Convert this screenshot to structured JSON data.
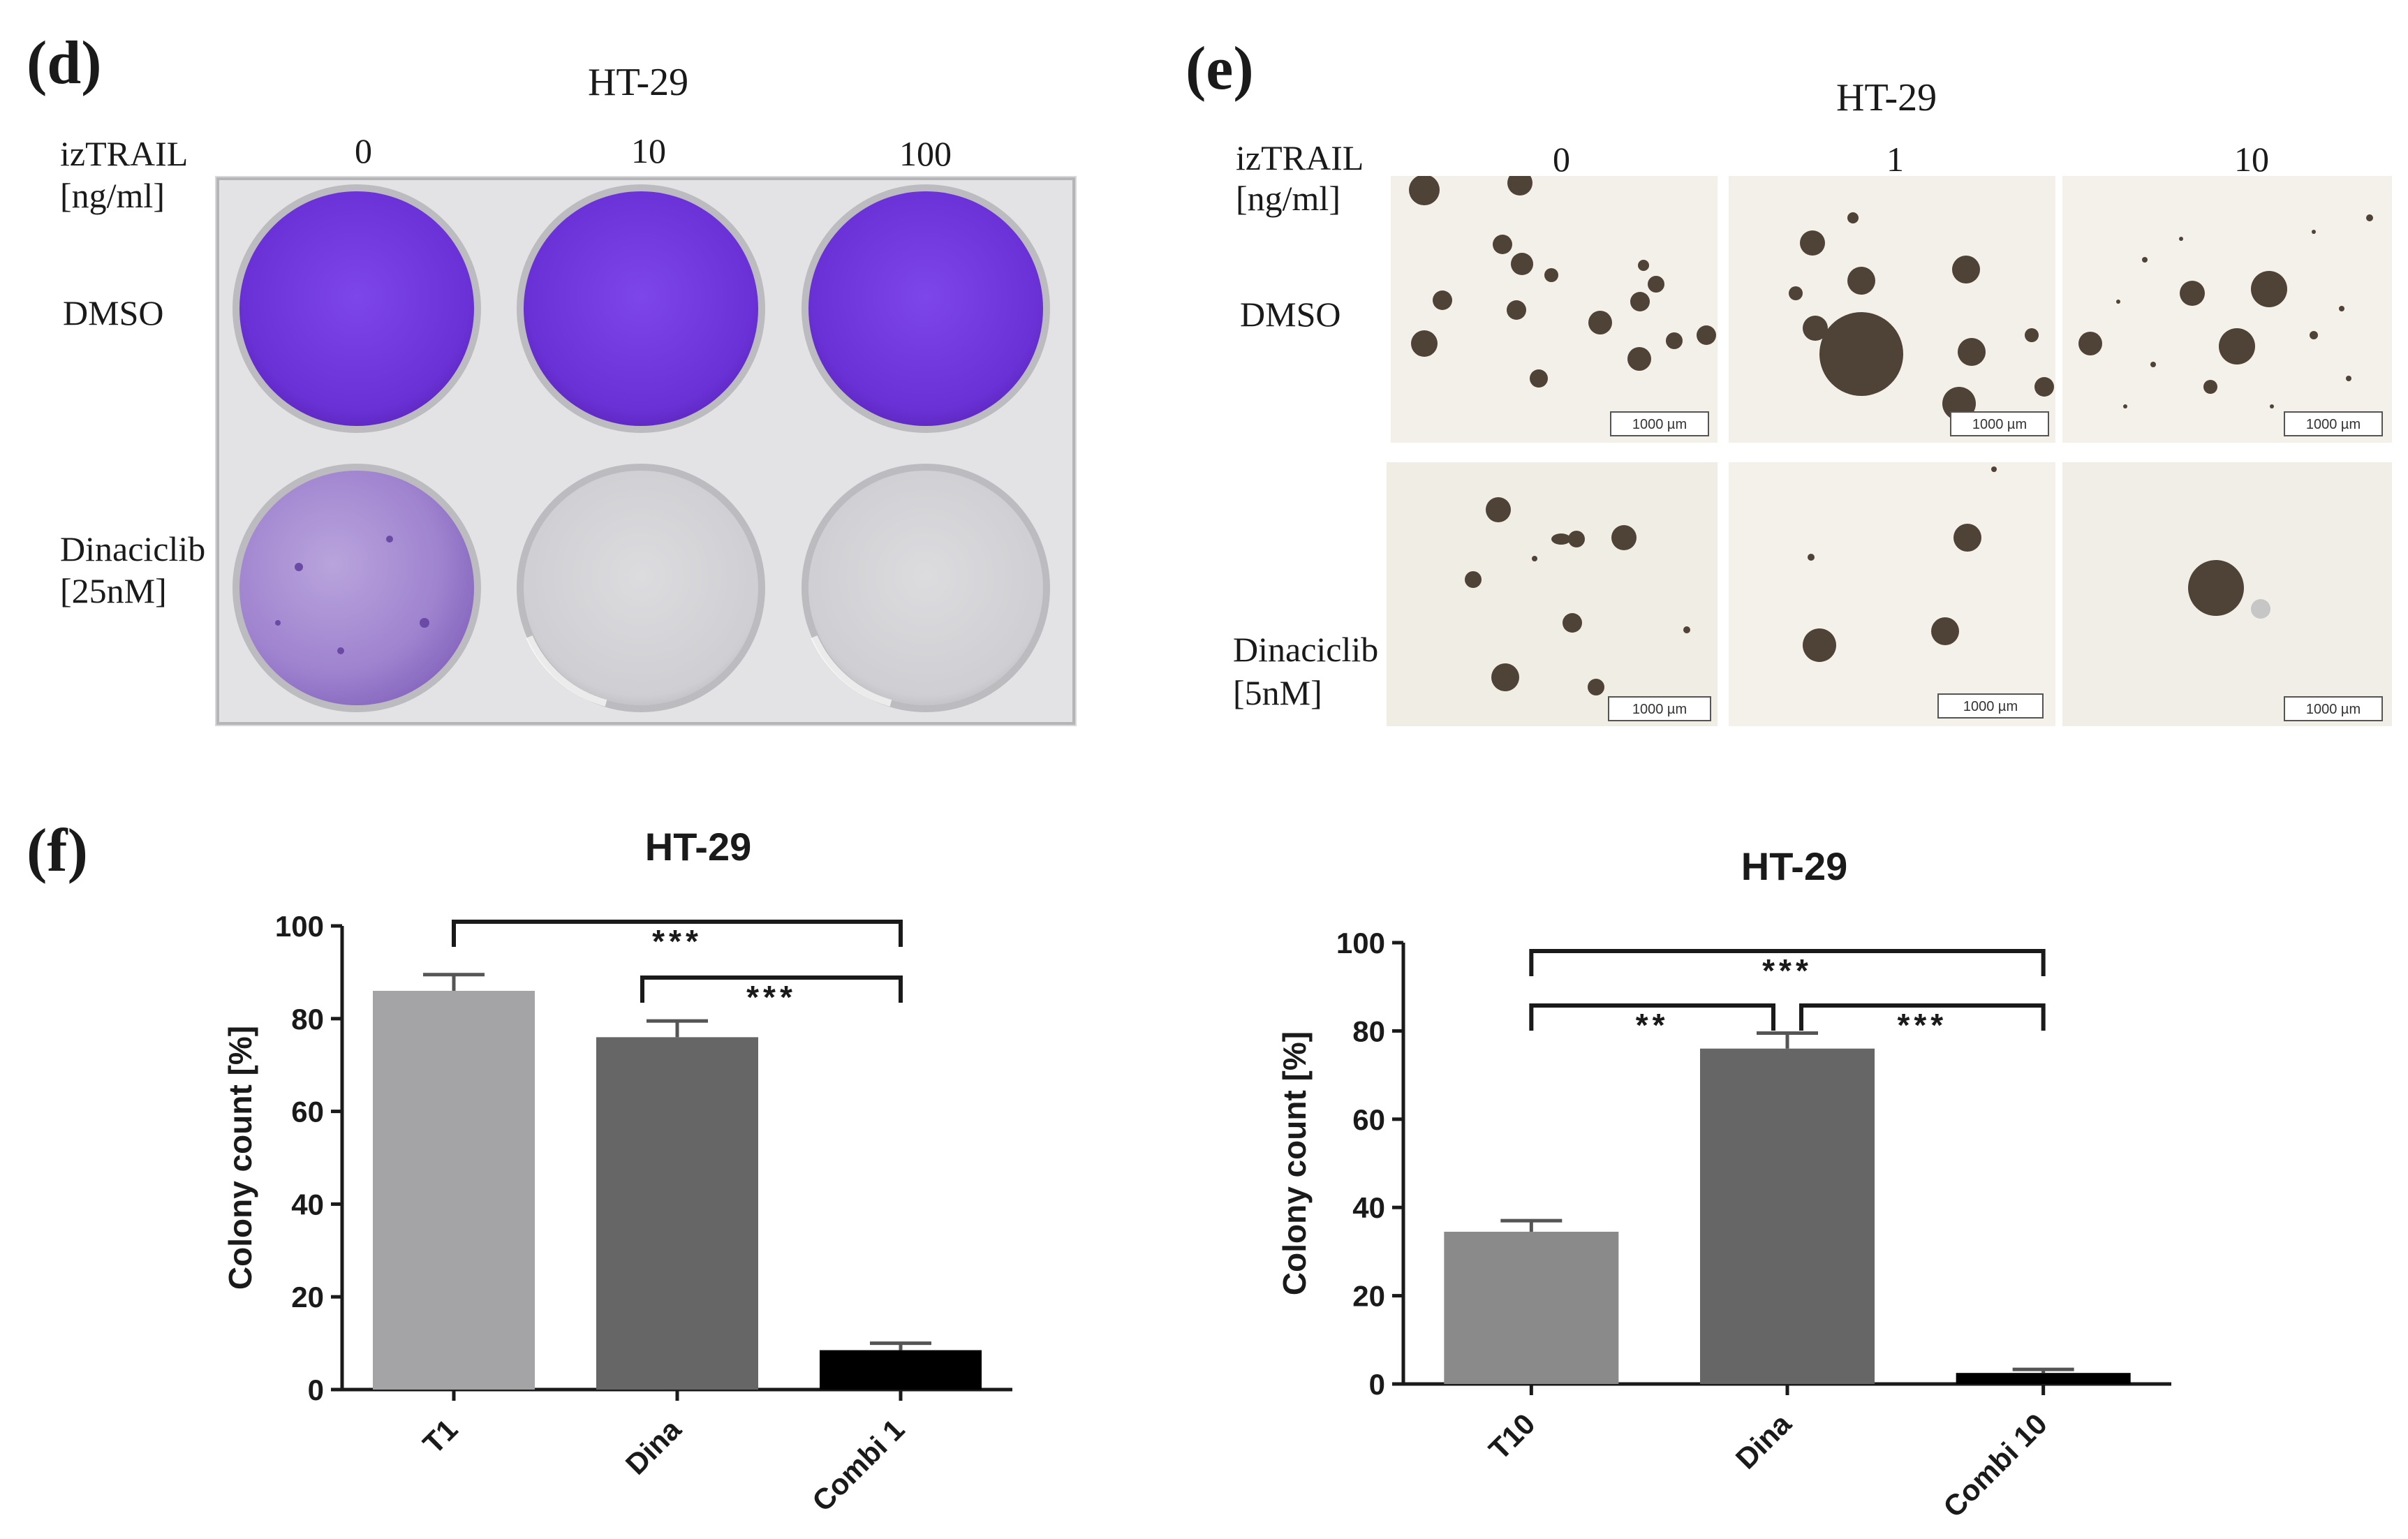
{
  "panel_d": {
    "letter": "(d)",
    "title": "HT-29",
    "dose_label_1": "izTRAIL",
    "dose_label_2": "[ng/ml]",
    "doses": [
      "0",
      "10",
      "100"
    ],
    "rows": [
      {
        "label_1": "DMSO",
        "label_2": ""
      },
      {
        "label_1": "Dinaciclib",
        "label_2": "[25nM]"
      }
    ],
    "colors": {
      "crystal_violet": "#7a3fe0",
      "plate": "#d9d9db"
    }
  },
  "panel_e": {
    "letter": "(e)",
    "title": "HT-29",
    "dose_label_1": "izTRAIL",
    "dose_label_2": "[ng/ml]",
    "doses": [
      "0",
      "1",
      "10"
    ],
    "rows": [
      {
        "label_1": "DMSO",
        "label_2": ""
      },
      {
        "label_1": "Dinaciclib",
        "label_2": "[5nM]"
      }
    ],
    "scale_bar": "1000 µm",
    "colors": {
      "background": "#f1efe6",
      "colony": "#4a3f34"
    }
  },
  "panel_f": {
    "letter": "(f)"
  },
  "chart_data": [
    {
      "type": "bar",
      "title": "HT-29",
      "ylabel": "Colony count [%]",
      "xlabel": "",
      "ylim": [
        0,
        100
      ],
      "yticks": [
        "0",
        "20",
        "40",
        "60",
        "80",
        "100"
      ],
      "categories": [
        "T1",
        "Dina",
        "Combi 1"
      ],
      "values": [
        86,
        76,
        8.5
      ],
      "errors": [
        3.5,
        3.5,
        1.5
      ],
      "colors": [
        "#a4a4a6",
        "#666666",
        "#000000"
      ],
      "significance": [
        {
          "from": 0,
          "to": 2,
          "label": "***"
        },
        {
          "from": 1,
          "to": 2,
          "label": "***"
        }
      ],
      "grid": false
    },
    {
      "type": "bar",
      "title": "HT-29",
      "ylabel": "Colony count [%]",
      "xlabel": "",
      "ylim": [
        0,
        100
      ],
      "yticks": [
        "0",
        "20",
        "40",
        "60",
        "80",
        "100"
      ],
      "categories": [
        "T10",
        "Dina",
        "Combi 10"
      ],
      "values": [
        34.5,
        76,
        2.5
      ],
      "errors": [
        2.5,
        3.5,
        0.8
      ],
      "colors": [
        "#8a8a8a",
        "#666666",
        "#000000"
      ],
      "significance": [
        {
          "from": 0,
          "to": 2,
          "label": "***"
        },
        {
          "from": 0,
          "to": 1,
          "label": "**"
        },
        {
          "from": 1,
          "to": 2,
          "label": "***"
        }
      ],
      "grid": false
    }
  ]
}
